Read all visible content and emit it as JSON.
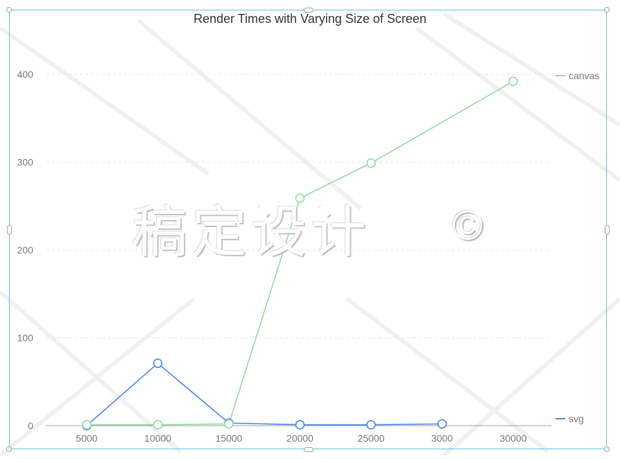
{
  "chart_data": {
    "type": "line",
    "title": "Render Times with Varying Size of Screen",
    "categories": [
      "5000",
      "10000",
      "15000",
      "20000",
      "25000",
      "3000",
      "30000"
    ],
    "series": [
      {
        "name": "canvas",
        "color": "#8fdc9f",
        "values": [
          1,
          1,
          2,
          259,
          299,
          null,
          392
        ]
      },
      {
        "name": "svg",
        "color": "#4a86e8",
        "values": [
          0,
          71,
          3,
          1,
          1,
          2,
          null
        ]
      }
    ],
    "ylim": [
      0,
      400
    ],
    "yticks": [
      0,
      100,
      200,
      300,
      400
    ],
    "xlabel": "",
    "ylabel": "",
    "grid": "horizontal-dashed",
    "legend": [
      {
        "name": "canvas",
        "placement": "top-right"
      },
      {
        "name": "svg",
        "placement": "bottom-right"
      }
    ]
  },
  "watermark": {
    "text": "稿定设计",
    "symbol": "©"
  },
  "colors": {
    "selection_frame": "#5bc3e6",
    "axis": "#9aa0a6",
    "grid": "#e6e6e6",
    "tick_text": "#777777"
  }
}
